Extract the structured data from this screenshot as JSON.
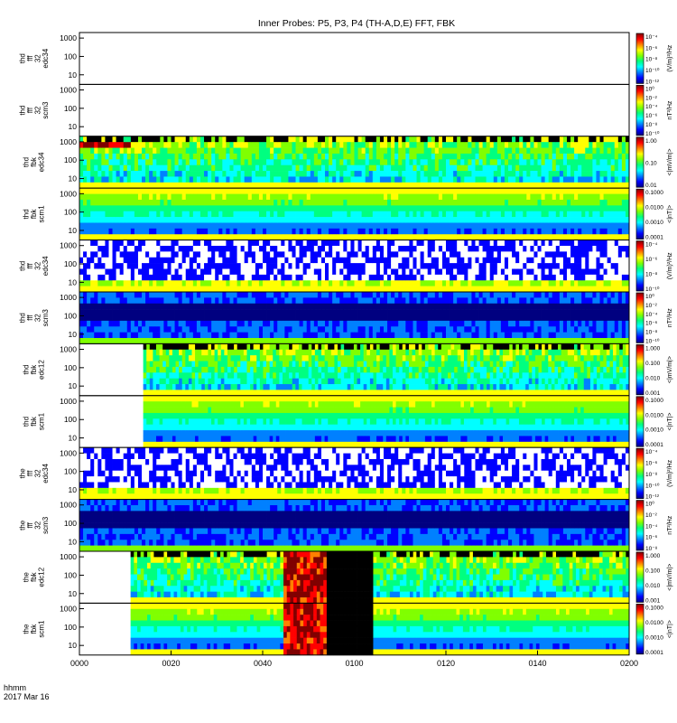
{
  "chart_data": {
    "type": "heatmap",
    "title": "Inner Probes: P5, P3, P4 (TH-A,D,E) FFT, FBK",
    "x_axis": {
      "ticks": [
        "0000",
        "0020",
        "0040",
        "0100",
        "0120",
        "0140",
        "0200"
      ],
      "label_line1": "hhmm",
      "label_line2": "2017 Mar 16"
    },
    "panels": [
      {
        "name": "the-fff-32-edc34",
        "ylabel": [
          "thd",
          "fff",
          "32",
          "edc34"
        ],
        "yticks": [
          "1000",
          "100",
          "10"
        ],
        "cbar_ticks": [
          "10⁻⁴",
          "10⁻⁶",
          "10⁻⁸",
          "10⁻¹⁰",
          "10⁻¹²"
        ],
        "cbar_label": "(V/m)²/Hz",
        "data_start_fraction": 1.0,
        "pattern": "empty"
      },
      {
        "name": "the-fff-32-scm3",
        "ylabel": [
          "thd",
          "fff",
          "32",
          "scm3"
        ],
        "yticks": [
          "1000",
          "100",
          "10"
        ],
        "cbar_ticks": [
          "10⁰",
          "10⁻²",
          "10⁻⁴",
          "10⁻⁶",
          "10⁻⁸",
          "10⁻¹⁰"
        ],
        "cbar_label": "nT²/Hz",
        "data_start_fraction": 1.0,
        "pattern": "empty"
      },
      {
        "name": "the-fbk-edc34",
        "ylabel": [
          "thd",
          "fbk",
          "edc34"
        ],
        "yticks": [
          "1000",
          "100",
          "10"
        ],
        "cbar_ticks": [
          "1.00",
          "0.10",
          "0.01"
        ],
        "cbar_label": "<|mV/m|>",
        "data_start_fraction": 0.0,
        "pattern": "fbk-e"
      },
      {
        "name": "the-fbk-scm1",
        "ylabel": [
          "thd",
          "fbk",
          "scm1"
        ],
        "yticks": [
          "1000",
          "100",
          "10"
        ],
        "cbar_ticks": [
          "0.1000",
          "0.0100",
          "0.0010",
          "0.0001"
        ],
        "cbar_label": "<|nT|>",
        "data_start_fraction": 0.0,
        "pattern": "fbk-b"
      },
      {
        "name": "thd-fff-32-edc34",
        "ylabel": [
          "thd",
          "fff",
          "32",
          "edc34"
        ],
        "yticks": [
          "1000",
          "100",
          "10"
        ],
        "cbar_ticks": [
          "10⁻⁴",
          "10⁻⁶",
          "10⁻⁸",
          "10⁻¹⁰"
        ],
        "cbar_label": "(V/m)²/Hz",
        "data_start_fraction": 0.0,
        "pattern": "fff-e"
      },
      {
        "name": "thd-fff-32-scm3",
        "ylabel": [
          "thd",
          "fff",
          "32",
          "scm3"
        ],
        "yticks": [
          "1000",
          "100",
          "10"
        ],
        "cbar_ticks": [
          "10⁰",
          "10⁻²",
          "10⁻⁴",
          "10⁻⁶",
          "10⁻⁸",
          "10⁻¹⁰"
        ],
        "cbar_label": "nT²/Hz",
        "data_start_fraction": 0.0,
        "pattern": "fff-b"
      },
      {
        "name": "thd-fbk-edc12",
        "ylabel": [
          "thd",
          "fbk",
          "edc12"
        ],
        "yticks": [
          "1000",
          "100",
          "10"
        ],
        "cbar_ticks": [
          "1.000",
          "0.100",
          "0.010",
          "0.001"
        ],
        "cbar_label": "<|mV/m|>",
        "data_start_fraction": 0.116,
        "pattern": "fbk-e"
      },
      {
        "name": "thd-fbk-scm1",
        "ylabel": [
          "thd",
          "fbk",
          "scm1"
        ],
        "yticks": [
          "1000",
          "100",
          "10"
        ],
        "cbar_ticks": [
          "0.1000",
          "0.0100",
          "0.0010",
          "0.0001"
        ],
        "cbar_label": "<|nT|>",
        "data_start_fraction": 0.116,
        "pattern": "fbk-b"
      },
      {
        "name": "the-fff-32-edc34-b",
        "ylabel": [
          "the",
          "fff",
          "32",
          "edc34"
        ],
        "yticks": [
          "1000",
          "100",
          "10"
        ],
        "cbar_ticks": [
          "10⁻⁴",
          "10⁻⁶",
          "10⁻⁸",
          "10⁻¹⁰",
          "10⁻¹²"
        ],
        "cbar_label": "(V/m)²/Hz",
        "data_start_fraction": 0.0,
        "pattern": "fff-e"
      },
      {
        "name": "the-fff-32-scm3-b",
        "ylabel": [
          "the",
          "fff",
          "32",
          "scm3"
        ],
        "yticks": [
          "1000",
          "100",
          "10"
        ],
        "cbar_ticks": [
          "10⁰",
          "10⁻²",
          "10⁻⁴",
          "10⁻⁶",
          "10⁻⁸"
        ],
        "cbar_label": "nT²/Hz",
        "data_start_fraction": 0.0,
        "pattern": "fff-b"
      },
      {
        "name": "the-fbk-edc12-b",
        "ylabel": [
          "the",
          "fbk",
          "edc12"
        ],
        "yticks": [
          "1000",
          "100",
          "10"
        ],
        "cbar_ticks": [
          "1.000",
          "0.100",
          "0.010",
          "0.001"
        ],
        "cbar_label": "<|mV/m|>",
        "data_start_fraction": 0.093,
        "pattern": "fbk-e-burst"
      },
      {
        "name": "the-fbk-scm1-b",
        "ylabel": [
          "the",
          "fbk",
          "scm1"
        ],
        "yticks": [
          "1000",
          "100",
          "10"
        ],
        "cbar_ticks": [
          "0.1000",
          "0.0100",
          "0.0010",
          "0.0001"
        ],
        "cbar_label": "<|nT|>",
        "data_start_fraction": 0.093,
        "pattern": "fbk-b-burst"
      }
    ],
    "colormap": [
      "#000080",
      "#0000ff",
      "#0080ff",
      "#00ffff",
      "#00ff80",
      "#80ff00",
      "#ffff00",
      "#ff8000",
      "#ff0000",
      "#800000"
    ],
    "ylim": [
      3,
      2000
    ],
    "ylog": true
  }
}
